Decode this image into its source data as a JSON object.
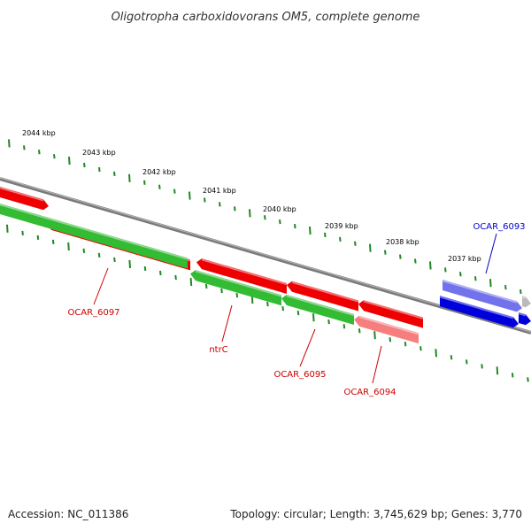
{
  "title": "Oligotropha carboxidovorans OM5, complete genome",
  "footer": {
    "accession": "Accession: NC_011386",
    "summary": "Topology: circular; Length: 3,745,629 bp; Genes: 3,770"
  },
  "colors": {
    "forward_gene": "#ee0000",
    "reverse_gene": "#33bb33",
    "highlight_gene": "#0000dd",
    "backbone": "#808080",
    "ticks": "#228822",
    "reverse_label": "#cc0000",
    "highlight_label": "#0000cc"
  },
  "scale_ticks": [
    {
      "label": "2044 kbp"
    },
    {
      "label": "2043 kbp"
    },
    {
      "label": "2042 kbp"
    },
    {
      "label": "2041 kbp"
    },
    {
      "label": "2040 kbp"
    },
    {
      "label": "2039 kbp"
    },
    {
      "label": "2038 kbp"
    },
    {
      "label": "2037 kbp"
    }
  ],
  "genes": [
    {
      "id": "OCAR_6097",
      "label": "OCAR_6097",
      "strand": "reverse"
    },
    {
      "id": "ntrC",
      "label": "ntrC",
      "strand": "reverse"
    },
    {
      "id": "OCAR_6095",
      "label": "OCAR_6095",
      "strand": "reverse"
    },
    {
      "id": "OCAR_6094",
      "label": "OCAR_6094",
      "strand": "reverse"
    },
    {
      "id": "OCAR_6093",
      "label": "OCAR_6093",
      "strand": "forward",
      "highlighted": true
    }
  ]
}
